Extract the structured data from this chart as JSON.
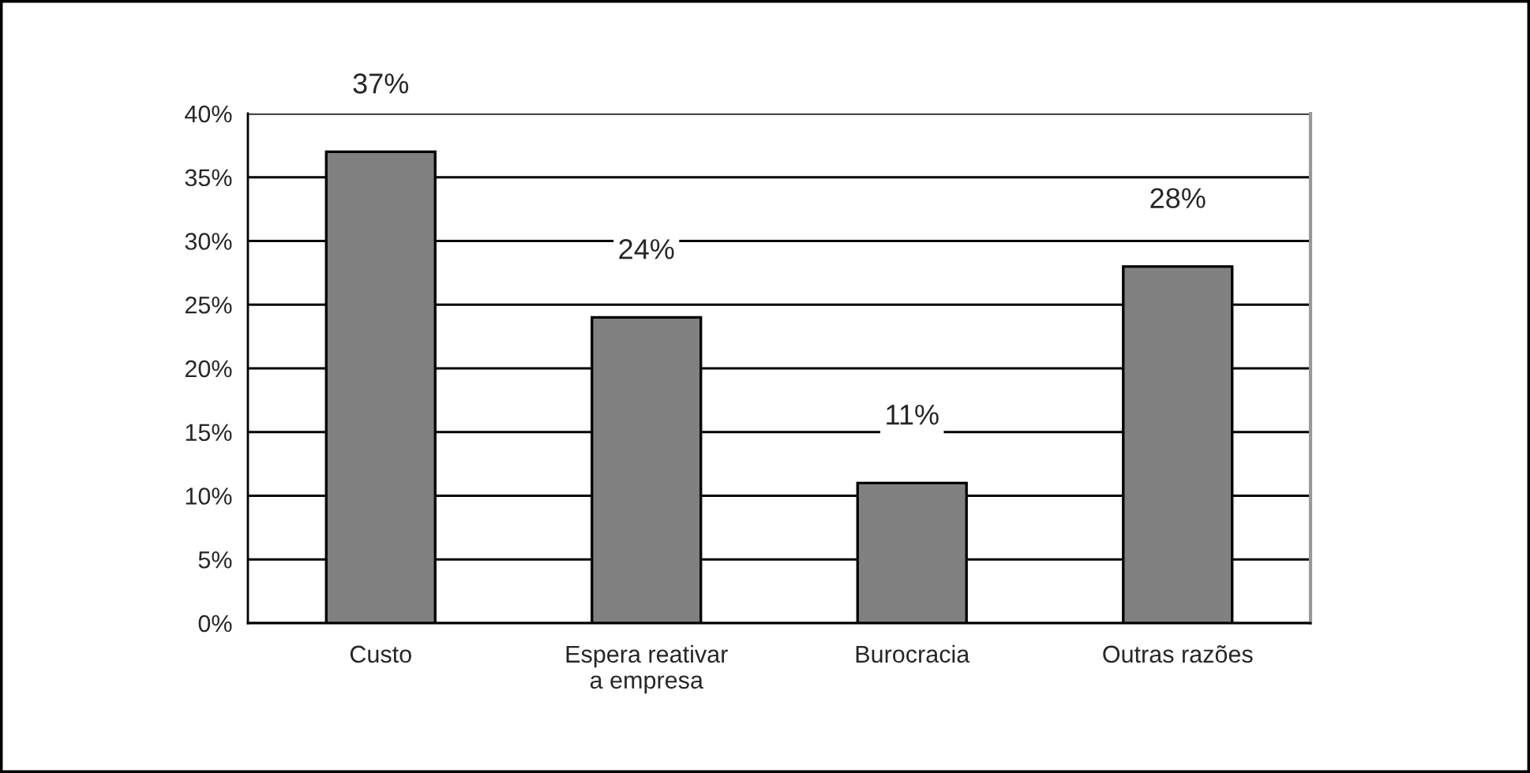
{
  "chart_data": {
    "type": "bar",
    "categories": [
      "Custo",
      "Espera reativar\na empresa",
      "Burocracia",
      "Outras razões"
    ],
    "values": [
      37,
      24,
      11,
      28
    ],
    "color": "#808080",
    "value_labels": [
      "37%",
      "24%",
      "11%",
      "28%"
    ],
    "ylim": [
      0,
      40
    ],
    "yticks": [
      {
        "value": 0,
        "label": "0%"
      },
      {
        "value": 5,
        "label": "5%"
      },
      {
        "value": 10,
        "label": "10%"
      },
      {
        "value": 15,
        "label": "15%"
      },
      {
        "value": 20,
        "label": "20%"
      },
      {
        "value": 25,
        "label": "25%"
      },
      {
        "value": 30,
        "label": "30%"
      },
      {
        "value": 35,
        "label": "35%"
      },
      {
        "value": 40,
        "label": "40%"
      }
    ],
    "grid": "y"
  }
}
